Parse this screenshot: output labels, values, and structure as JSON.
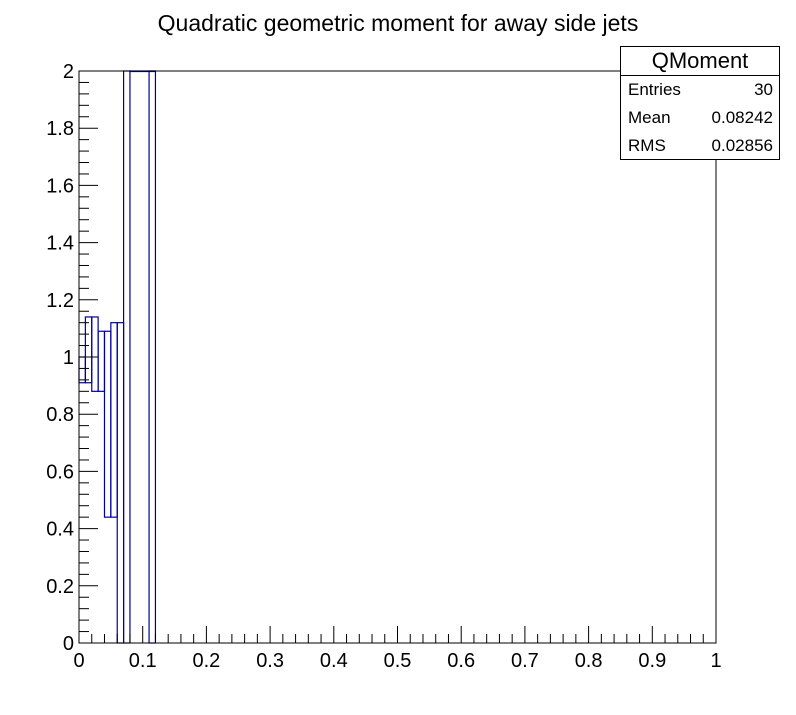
{
  "chart_data": {
    "type": "histogram",
    "title": "Quadratic geometric moment for away side jets",
    "xlabel": "",
    "ylabel": "",
    "xlim": [
      0,
      1
    ],
    "ylim": [
      0,
      2
    ],
    "bin_width": 0.01,
    "x_ticks": [
      "0",
      "0.1",
      "0.2",
      "0.3",
      "0.4",
      "0.5",
      "0.6",
      "0.7",
      "0.8",
      "0.9",
      "1"
    ],
    "y_ticks": [
      "0",
      "0.2",
      "0.4",
      "0.6",
      "0.8",
      "1",
      "1.2",
      "1.4",
      "1.6",
      "1.8",
      "2"
    ],
    "bins": [
      {
        "x_low": 0.0,
        "x_high": 0.01,
        "y_low": 0.91,
        "y_high": 1.0
      },
      {
        "x_low": 0.01,
        "x_high": 0.02,
        "y_low": 0.91,
        "y_high": 1.14
      },
      {
        "x_low": 0.02,
        "x_high": 0.03,
        "y_low": 0.88,
        "y_high": 1.14
      },
      {
        "x_low": 0.03,
        "x_high": 0.04,
        "y_low": 0.88,
        "y_high": 1.09
      },
      {
        "x_low": 0.04,
        "x_high": 0.05,
        "y_low": 0.44,
        "y_high": 1.09
      },
      {
        "x_low": 0.05,
        "x_high": 0.06,
        "y_low": 0.44,
        "y_high": 1.12
      },
      {
        "x_low": 0.06,
        "x_high": 0.07,
        "y_low": 0.0,
        "y_high": 1.12
      },
      {
        "x_low": 0.07,
        "x_high": 0.08,
        "y_low": 0.0,
        "y_high": 2.0
      },
      {
        "x_low": 0.08,
        "x_high": 0.12,
        "y_low": 2.0,
        "y_high": 2.0
      },
      {
        "x_low": 0.11,
        "x_high": 0.12,
        "y_low": 0.0,
        "y_high": 2.0
      }
    ],
    "line_color": "#000099",
    "grid": false,
    "legend": "none",
    "stats": {
      "name": "QMoment",
      "entries_label": "Entries",
      "entries": "30",
      "mean_label": "Mean",
      "mean": "0.08242",
      "rms_label": "RMS",
      "rms": "0.02856"
    }
  }
}
